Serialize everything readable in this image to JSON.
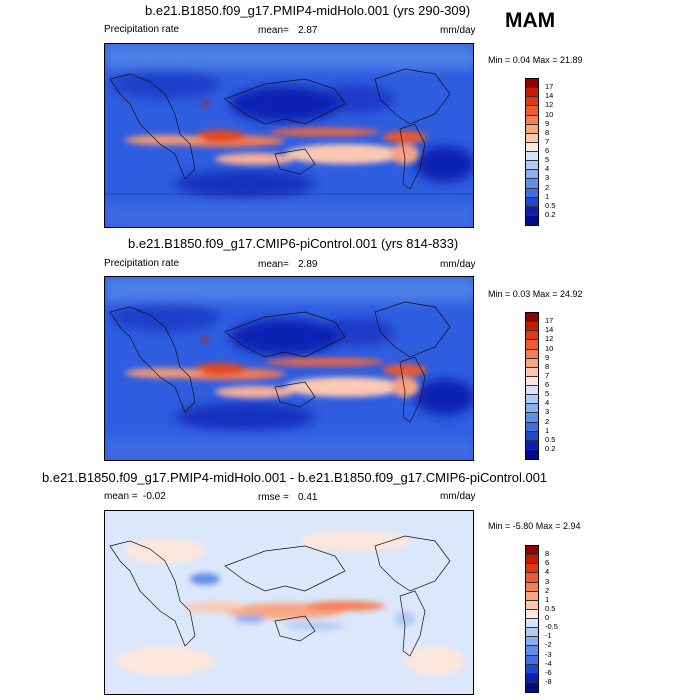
{
  "season": "MAM",
  "panels": [
    {
      "title": "b.e21.B1850.f09_g17.PMIP4-midHolo.001 (yrs 290-309)",
      "left_label": "Precipitation rate",
      "mean_label": "mean=",
      "mean_value": "2.87",
      "units": "mm/day",
      "minmax": "Min =  0.04 Max =  21.89",
      "legend_labels": [
        "17",
        "14",
        "12",
        "10",
        "9",
        "8",
        "7",
        "6",
        "5",
        "4",
        "3",
        "2",
        "1",
        "0.5",
        "0.2"
      ]
    },
    {
      "title": "b.e21.B1850.f09_g17.CMIP6-piControl.001 (yrs 814-833)",
      "left_label": "Precipitation rate",
      "mean_label": "mean=",
      "mean_value": "2.89",
      "units": "mm/day",
      "minmax": "Min =  0.03 Max =  24.92",
      "legend_labels": [
        "17",
        "14",
        "12",
        "10",
        "9",
        "8",
        "7",
        "6",
        "5",
        "4",
        "3",
        "2",
        "1",
        "0.5",
        "0.2"
      ]
    },
    {
      "title": "b.e21.B1850.f09_g17.PMIP4-midHolo.001 - b.e21.B1850.f09_g17.CMIP6-piControl.001",
      "left_label": "mean =",
      "left_value": "-0.02",
      "mean_label": "rmse =",
      "mean_value": "0.41",
      "units": "mm/day",
      "minmax": "Min = -5.80 Max =  2.94",
      "legend_labels": [
        "8",
        "6",
        "4",
        "3",
        "2",
        "1",
        "0.5",
        "0",
        "-0.5",
        "-1",
        "-2",
        "-3",
        "-4",
        "-6",
        "-8"
      ]
    }
  ],
  "colors": {
    "precip_scale": [
      "#8f0000",
      "#c61b00",
      "#e03a12",
      "#ee5c33",
      "#f47f57",
      "#f8a582",
      "#fbc7ae",
      "#fde6da",
      "#d6e4fb",
      "#b2cbf5",
      "#8aaef0",
      "#628ee8",
      "#3f6fe0",
      "#2147cf",
      "#0c1fb0",
      "#000c8a"
    ],
    "diff_scale": [
      "#8f0000",
      "#c61b00",
      "#e03a12",
      "#ee5c33",
      "#f47f57",
      "#f8a582",
      "#fbc7ae",
      "#fde6da",
      "#d6e4fb",
      "#b2cbf5",
      "#8aaef0",
      "#628ee8",
      "#3f6fe0",
      "#2147cf",
      "#0c1fb0",
      "#000c8a"
    ]
  },
  "chart_data": [
    {
      "type": "heatmap",
      "title": "b.e21.B1850.f09_g17.PMIP4-midHolo.001 (yrs 290-309)",
      "variable": "Precipitation rate",
      "units": "mm/day",
      "mean": 2.87,
      "min": 0.04,
      "max": 21.89,
      "levels": [
        0.2,
        0.5,
        1,
        2,
        3,
        4,
        5,
        6,
        7,
        8,
        9,
        10,
        12,
        14,
        17
      ]
    },
    {
      "type": "heatmap",
      "title": "b.e21.B1850.f09_g17.CMIP6-piControl.001 (yrs 814-833)",
      "variable": "Precipitation rate",
      "units": "mm/day",
      "mean": 2.89,
      "min": 0.03,
      "max": 24.92,
      "levels": [
        0.2,
        0.5,
        1,
        2,
        3,
        4,
        5,
        6,
        7,
        8,
        9,
        10,
        12,
        14,
        17
      ]
    },
    {
      "type": "heatmap",
      "title": "b.e21.B1850.f09_g17.PMIP4-midHolo.001 - b.e21.B1850.f09_g17.CMIP6-piControl.001",
      "units": "mm/day",
      "mean": -0.02,
      "rmse": 0.41,
      "min": -5.8,
      "max": 2.94,
      "levels": [
        -8,
        -6,
        -4,
        -3,
        -2,
        -1,
        -0.5,
        0,
        0.5,
        1,
        2,
        3,
        4,
        6,
        8
      ]
    }
  ]
}
